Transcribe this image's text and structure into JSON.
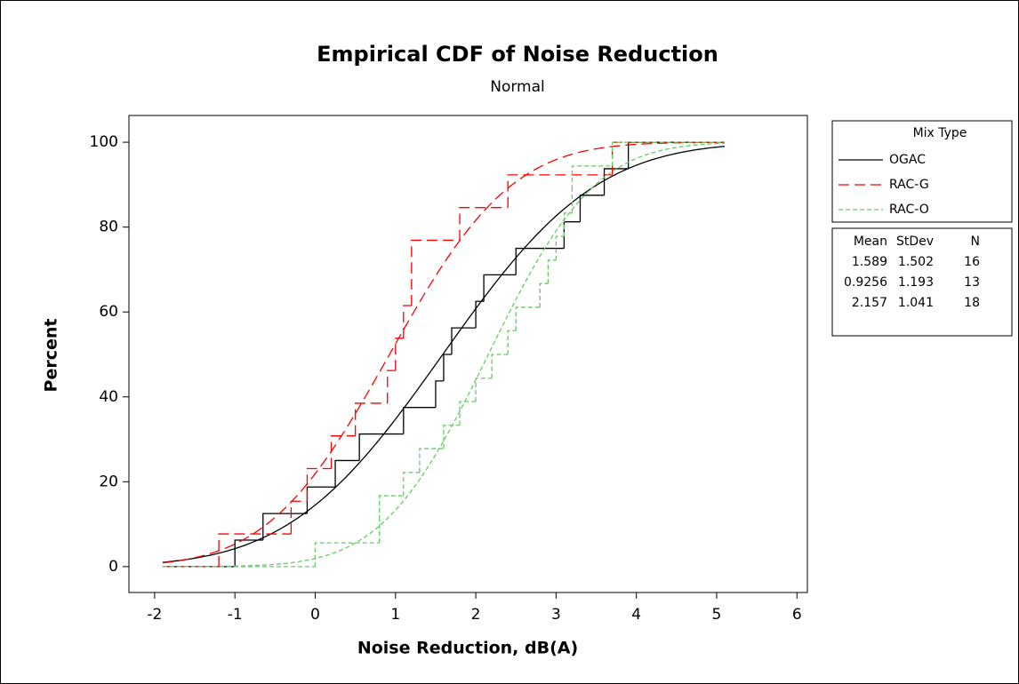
{
  "chart_data": {
    "type": "ecdf",
    "title": "Empirical CDF of Noise Reduction",
    "subtitle": "Normal",
    "xlabel": "Noise Reduction, dB(A)",
    "ylabel": "Percent",
    "xlim": [
      -2.32,
      6.13
    ],
    "ylim": [
      -6.1,
      106.3
    ],
    "xticks": [
      -2,
      -1,
      0,
      1,
      2,
      3,
      4,
      5,
      6
    ],
    "yticks": [
      0,
      20,
      40,
      60,
      80,
      100
    ],
    "fit_range": [
      -1.9,
      5.1
    ],
    "legend_title": "Mix Type",
    "stats_headers": [
      "Mean",
      "StDev",
      "N"
    ],
    "series": [
      {
        "name": "OGAC",
        "color": "#000000",
        "dash": "none",
        "mean": 1.589,
        "stdev": 1.502,
        "n": 16,
        "x": [
          -1.0,
          -0.65,
          -0.1,
          0.25,
          0.55,
          1.1,
          1.5,
          1.6,
          1.7,
          2.0,
          2.1,
          2.5,
          3.1,
          3.3,
          3.6,
          3.9
        ],
        "percent": [
          6.25,
          12.5,
          18.75,
          25,
          31.25,
          37.5,
          43.75,
          50,
          56.25,
          62.5,
          68.75,
          75,
          81.25,
          87.5,
          93.75,
          100
        ]
      },
      {
        "name": "RAC-G",
        "color": "#ff0000",
        "dash": "12 6",
        "mean": 0.9256,
        "stdev": 1.193,
        "n": 13,
        "x": [
          -1.2,
          -0.3,
          -0.1,
          0.2,
          0.5,
          0.9,
          1.0,
          1.1,
          1.2,
          1.2,
          1.8,
          2.4,
          3.7
        ],
        "percent": [
          7.7,
          15.4,
          23.1,
          30.8,
          38.5,
          46.2,
          53.8,
          61.5,
          69.2,
          76.9,
          84.6,
          92.3,
          100
        ]
      },
      {
        "name": "RAC-O",
        "color": "#66cc66",
        "dash": "5 3",
        "mean": 2.157,
        "stdev": 1.041,
        "n": 18,
        "x": [
          0.0,
          0.8,
          0.8,
          1.1,
          1.3,
          1.6,
          1.8,
          2.0,
          2.2,
          2.4,
          2.5,
          2.8,
          2.9,
          3.0,
          3.1,
          3.2,
          3.2,
          3.7
        ],
        "percent": [
          5.6,
          11.1,
          16.7,
          22.2,
          27.8,
          33.3,
          38.9,
          44.4,
          50,
          55.6,
          61.1,
          66.7,
          72.2,
          77.8,
          83.3,
          88.9,
          94.4,
          100
        ]
      }
    ]
  }
}
